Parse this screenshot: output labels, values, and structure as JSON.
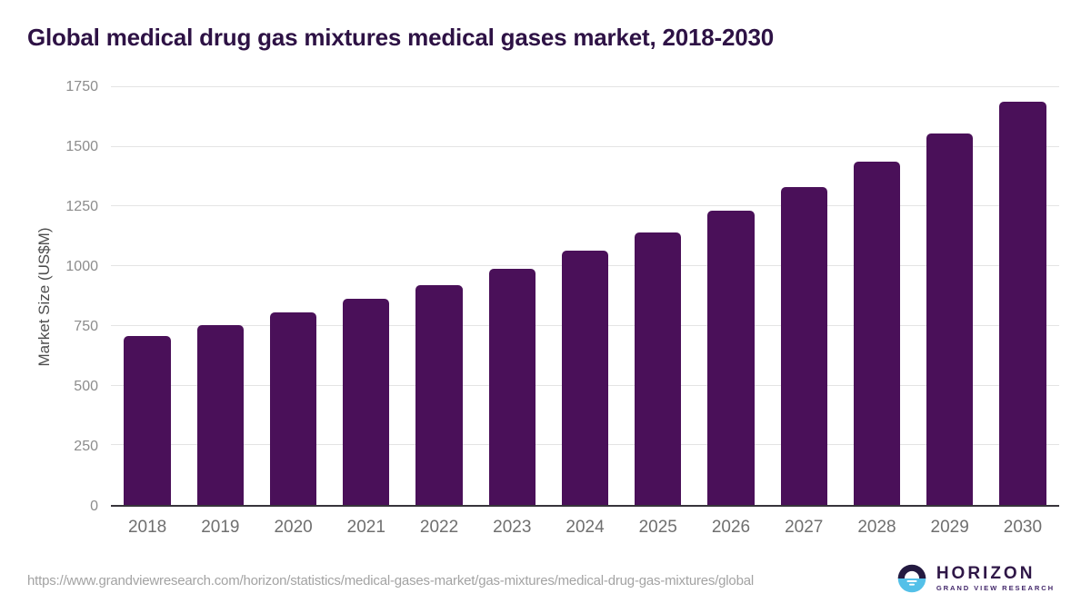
{
  "chart_data": {
    "type": "bar",
    "title": "Global medical drug gas mixtures medical gases market, 2018-2030",
    "categories": [
      "2018",
      "2019",
      "2020",
      "2021",
      "2022",
      "2023",
      "2024",
      "2025",
      "2026",
      "2027",
      "2028",
      "2029",
      "2030"
    ],
    "values": [
      708,
      755,
      806,
      864,
      922,
      989,
      1064,
      1143,
      1234,
      1330,
      1437,
      1557,
      1691
    ],
    "xlabel": "",
    "ylabel": "Market Size (US$M)",
    "ylim": [
      0,
      1750
    ],
    "yticks": [
      0,
      250,
      500,
      750,
      1000,
      1250,
      1500,
      1750
    ],
    "grid": true,
    "legend": false,
    "bar_color": "#4a1059",
    "bar_corner_radius": 5
  },
  "footer": {
    "source_url": "https://www.grandviewresearch.com/horizon/statistics/medical-gases-market/gas-mixtures/medical-drug-gas-mixtures/global",
    "logo": {
      "brand": "HORIZON",
      "tagline": "GRAND VIEW RESEARCH"
    }
  },
  "colors": {
    "bar": "#4a1059",
    "title": "#2e1245",
    "axis_title": "#4d4d4d",
    "y_tick": "#8c8c8c",
    "x_tick": "#6f6f6f",
    "gridline": "#e4e4e4",
    "axis_line": "#37343b",
    "url": "#a3a3a3",
    "logo_dark": "#241a41",
    "logo_blue": "#54c0e8"
  }
}
